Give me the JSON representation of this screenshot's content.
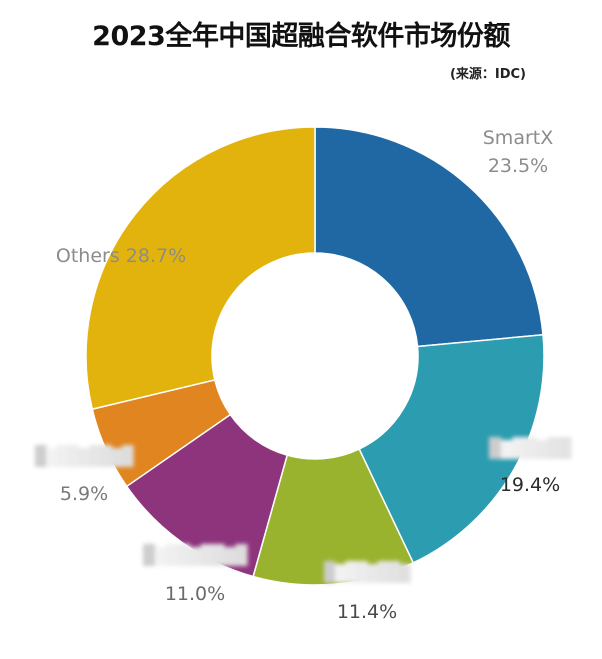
{
  "title": "2023全年中国超融合软件市场份额",
  "source": "(来源：IDC)",
  "chart_data": {
    "type": "pie",
    "donut": true,
    "title": "2023全年中国超融合软件市场份额",
    "source": "(来源：IDC)",
    "slices": [
      {
        "name": "SmartX",
        "value": 23.5,
        "label": "23.5%",
        "color": "#1f68a4",
        "name_redacted": false
      },
      {
        "name": "",
        "value": 19.4,
        "label": "19.4%",
        "color": "#2c9cb0",
        "name_redacted": true
      },
      {
        "name": "",
        "value": 11.4,
        "label": "11.4%",
        "color": "#9ab32e",
        "name_redacted": true
      },
      {
        "name": "",
        "value": 11.0,
        "label": "11.0%",
        "color": "#8d347d",
        "name_redacted": true
      },
      {
        "name": "",
        "value": 5.9,
        "label": "5.9%",
        "color": "#e0851f",
        "name_redacted": true
      },
      {
        "name": "Others",
        "value": 28.7,
        "label": "28.7%",
        "color": "#e2b30c",
        "name_redacted": false
      }
    ]
  }
}
